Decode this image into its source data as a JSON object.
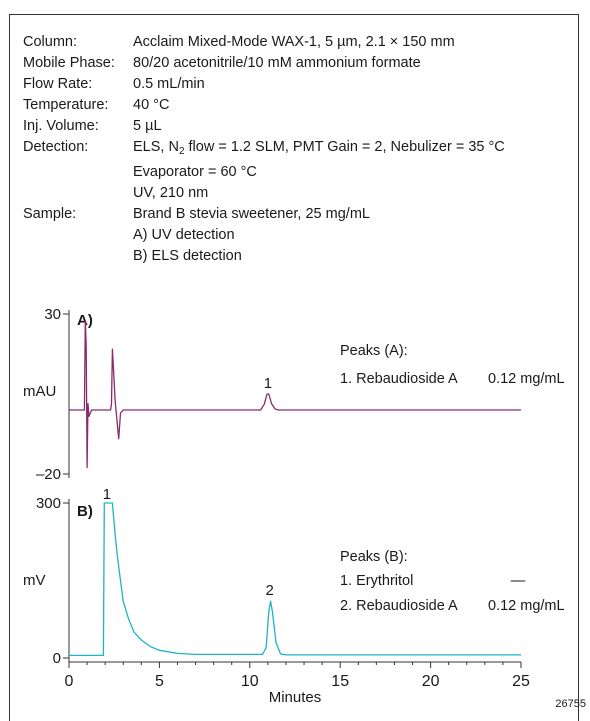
{
  "conditions": [
    {
      "label": "Column:",
      "value": "Acclaim Mixed-Mode WAX-1, 5 µm, 2.1 × 150 mm"
    },
    {
      "label": "Mobile Phase:",
      "value": "80/20 acetonitrile/10 mM ammonium formate"
    },
    {
      "label": "Flow Rate:",
      "value": "0.5 mL/min"
    },
    {
      "label": "Temperature:",
      "value": "40 °C"
    },
    {
      "label": "Inj. Volume:",
      "value": "5 µL"
    },
    {
      "label": "Detection:",
      "value_pre": "ELS, N",
      "value_sub": "2",
      "value_post": " flow = 1.2 SLM, PMT Gain = 2, Nebulizer = 35 °C"
    },
    {
      "label": "",
      "value": "Evaporator = 60 °C"
    },
    {
      "label": "",
      "value": "UV, 210 nm"
    },
    {
      "label": "Sample:",
      "value": "Brand B stevia sweetener, 25 mg/mL"
    },
    {
      "label": "",
      "value": "A) UV detection"
    },
    {
      "label": "",
      "value": "B) ELS detection"
    }
  ],
  "figure_number": "26755",
  "colors": {
    "uv_trace": "#8a2a6e",
    "els_trace": "#1fb3c4",
    "axis": "#333333"
  },
  "chart_data": [
    {
      "type": "line",
      "panel_label": "A)",
      "ylabel": "mAU",
      "xlabel": "",
      "xlim": [
        0,
        25
      ],
      "ylim": [
        -20,
        30
      ],
      "yticks": [
        30,
        -20
      ],
      "xticks": [],
      "series": [
        {
          "x": [
            0,
            0.85,
            0.9,
            0.95,
            1.0,
            1.05,
            1.1,
            1.25,
            2.3,
            2.35,
            2.4,
            2.45,
            2.55,
            2.65,
            2.75,
            2.85,
            3.0,
            3.3,
            10.6,
            10.8,
            10.95,
            11.05,
            11.2,
            11.4,
            11.6,
            25
          ],
          "y": [
            0,
            0,
            28,
            20,
            -18,
            2,
            -2,
            0,
            0,
            2,
            19,
            14,
            3,
            -3,
            -9,
            -1,
            0,
            0,
            0,
            1.8,
            5,
            5,
            2,
            0.3,
            0,
            0
          ]
        }
      ],
      "annotations": [
        {
          "text": "1",
          "x": 11.0
        }
      ],
      "legend": {
        "title": "Peaks (A):",
        "items": [
          {
            "label": "1.  Rebaudioside A",
            "amount": "0.12 mg/mL"
          }
        ]
      }
    },
    {
      "type": "line",
      "panel_label": "B)",
      "ylabel": "mV",
      "xlabel": "Minutes",
      "xlim": [
        0,
        25
      ],
      "ylim": [
        0,
        300
      ],
      "yticks": [
        300,
        0
      ],
      "xticks": [
        0,
        5,
        10,
        15,
        20,
        25
      ],
      "series": [
        {
          "x": [
            0,
            1.9,
            1.95,
            2.0,
            2.15,
            2.3,
            2.4,
            2.55,
            2.7,
            2.85,
            3.0,
            3.3,
            3.6,
            4.0,
            4.5,
            5.0,
            6.0,
            7.0,
            10.7,
            10.9,
            11.05,
            11.15,
            11.25,
            11.45,
            11.7,
            12.0,
            25
          ],
          "y": [
            5,
            5,
            300,
            300,
            300,
            300,
            300,
            240,
            190,
            150,
            110,
            75,
            50,
            35,
            22,
            15,
            9,
            7,
            7,
            20,
            90,
            110,
            90,
            30,
            8,
            6,
            6
          ]
        }
      ],
      "annotations": [
        {
          "text": "1",
          "x": 2.1
        },
        {
          "text": "2",
          "x": 11.1
        }
      ],
      "legend": {
        "title": "Peaks (B):",
        "items": [
          {
            "label": "1. Erythritol",
            "amount": "—"
          },
          {
            "label": "2. Rebaudioside A",
            "amount": "0.12 mg/mL"
          }
        ]
      }
    }
  ]
}
